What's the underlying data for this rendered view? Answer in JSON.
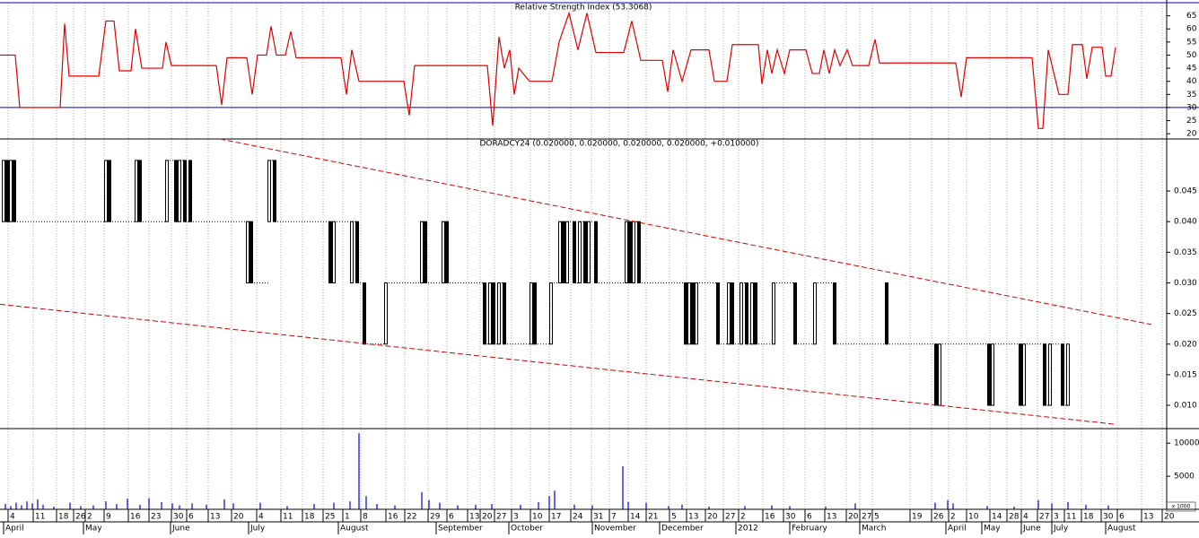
{
  "chart_data": [
    {
      "type": "line",
      "title": "Relative Strength Index (53.3068)",
      "color": "#e00000",
      "xlim": [
        0,
        325
      ],
      "ylim": [
        18,
        70
      ],
      "yticks": [
        20,
        25,
        30,
        35,
        40,
        45,
        50,
        55,
        60,
        65
      ],
      "ref_lines": [
        30,
        70
      ],
      "ref_color": "#0000cc",
      "x": [
        0,
        4.25,
        5.5,
        16.75,
        18,
        19.25,
        27.5,
        29.5,
        31.75,
        33.25,
        36.5,
        37.75,
        39.5,
        45.25,
        46.25,
        47.75,
        60.25,
        61.75,
        63.25,
        68.75,
        70.25,
        71.75,
        74.25,
        75.5,
        77,
        79.5,
        81,
        82.5,
        95,
        96.5,
        98,
        100,
        112.5,
        114,
        115.5,
        135.75,
        137.25,
        139,
        140.5,
        142,
        143.25,
        144.5,
        147.5,
        153.75,
        155.75,
        158.5,
        161,
        163.5,
        166,
        173.75,
        176,
        178.5,
        184.5,
        186,
        187.5,
        190,
        192.5,
        197.5,
        199,
        202.5,
        204,
        211.25,
        212.25,
        213.75,
        215,
        216.5,
        218.5,
        220,
        224.5,
        226.25,
        228.25,
        229.5,
        231,
        232.5,
        234,
        236,
        237.5,
        242,
        243.75,
        245,
        266.25,
        267.75,
        269.25,
        287.5,
        289.25,
        290.5,
        292,
        295,
        297.5,
        298.75,
        301.5,
        302.75,
        304.25,
        307,
        308,
        309.5,
        310.75
      ],
      "values": [
        50,
        50,
        30,
        30,
        62,
        42,
        42,
        63,
        63,
        44,
        44,
        60,
        45,
        45,
        55,
        46,
        46,
        31,
        49,
        49,
        35,
        50,
        50,
        61,
        50,
        50,
        59,
        49,
        49,
        35,
        52,
        40,
        40,
        27,
        46,
        46,
        23,
        57,
        45,
        52,
        35,
        45,
        40,
        40,
        55,
        66,
        52,
        66,
        51,
        51,
        63,
        48,
        48,
        36,
        52,
        40,
        52,
        52,
        40,
        40,
        54,
        54,
        39,
        52,
        43,
        52,
        43,
        52,
        52,
        43,
        43,
        52,
        43,
        52,
        46,
        52,
        46,
        46,
        56,
        47,
        47,
        34,
        49,
        49,
        22,
        22,
        52,
        35,
        35,
        54,
        54,
        41,
        53,
        53,
        42,
        42,
        53
      ]
    },
    {
      "type": "candlestick",
      "title": "DORADCY24 (0.020000, 0.020000, 0.020000, 0.020000, +0.010000)",
      "color": "#000000",
      "xlim": [
        0,
        325
      ],
      "ylim": [
        0.0062,
        0.0535
      ],
      "yticks": [
        {
          "value": 0.01,
          "label": "0.010"
        },
        0.015,
        {
          "value": 0.02,
          "label": "0.020"
        },
        0.025,
        {
          "value": 0.03,
          "label": "0.030"
        },
        0.035,
        {
          "value": 0.04,
          "label": "0.040"
        },
        0.045
      ],
      "x": [
        1,
        2,
        3,
        4,
        29.5,
        30.5,
        38,
        39,
        46.5,
        49,
        50,
        51.5,
        53,
        69,
        70,
        75,
        76.5,
        92,
        93,
        98,
        99.5,
        101.5,
        107.5,
        117.5,
        118.5,
        123.5,
        124.5,
        135,
        136.5,
        137.5,
        139,
        140.5,
        148,
        149,
        153.5,
        156,
        157,
        158,
        160,
        161.5,
        163,
        164,
        166,
        174.5,
        175.5,
        176.5,
        178,
        191,
        192,
        193,
        194,
        200,
        203,
        204,
        206.5,
        208,
        209.5,
        210.5,
        215.5,
        221.5,
        227,
        232.5,
        247,
        260.75,
        261.75,
        275.5,
        276.5,
        284.25,
        285.25,
        291,
        292.5,
        296,
        297.5
      ],
      "open": [
        0.04,
        0.05,
        0.04,
        0.05,
        0.04,
        0.05,
        0.04,
        0.05,
        0.04,
        0.05,
        0.04,
        0.05,
        0.05,
        0.03,
        0.04,
        0.04,
        0.05,
        0.04,
        0.03,
        0.03,
        0.04,
        0.03,
        0.02,
        0.03,
        0.04,
        0.03,
        0.04,
        0.03,
        0.02,
        0.03,
        0.02,
        0.03,
        0.02,
        0.03,
        0.02,
        0.03,
        0.04,
        0.03,
        0.04,
        0.03,
        0.04,
        0.03,
        0.04,
        0.03,
        0.04,
        0.03,
        0.04,
        0.03,
        0.02,
        0.03,
        0.02,
        0.03,
        0.02,
        0.03,
        0.02,
        0.03,
        0.02,
        0.03,
        0.02,
        0.03,
        0.02,
        0.03,
        0.03,
        0.02,
        0.01,
        0.02,
        0.01,
        0.02,
        0.01,
        0.02,
        0.01,
        0.02,
        0.01
      ],
      "close": [
        0.05,
        0.04,
        0.05,
        0.04,
        0.05,
        0.04,
        0.05,
        0.04,
        0.05,
        0.04,
        0.05,
        0.04,
        0.04,
        0.04,
        0.03,
        0.05,
        0.04,
        0.03,
        0.04,
        0.04,
        0.03,
        0.02,
        0.03,
        0.04,
        0.03,
        0.04,
        0.03,
        0.02,
        0.03,
        0.02,
        0.03,
        0.02,
        0.03,
        0.02,
        0.03,
        0.04,
        0.03,
        0.04,
        0.03,
        0.04,
        0.03,
        0.04,
        0.03,
        0.04,
        0.03,
        0.04,
        0.03,
        0.02,
        0.03,
        0.02,
        0.03,
        0.02,
        0.03,
        0.02,
        0.03,
        0.02,
        0.03,
        0.02,
        0.03,
        0.02,
        0.03,
        0.02,
        0.02,
        0.01,
        0.02,
        0.01,
        0.02,
        0.01,
        0.02,
        0.01,
        0.02,
        0.01,
        0.02
      ],
      "trendlines": [
        {
          "x": [
            61.25,
            320.75
          ],
          "y": [
            0.0535,
            0.0232
          ]
        },
        {
          "x": [
            0,
            310.75
          ],
          "y": [
            0.0265,
            0.0069
          ]
        }
      ],
      "trendline_color": "#d00000"
    },
    {
      "type": "bar",
      "color": "#0000cc",
      "unit_label": "x 1000",
      "xlim": [
        0,
        325
      ],
      "ylim": [
        0,
        12200
      ],
      "yticks": [
        5000,
        10000
      ],
      "x": [
        1.5,
        3,
        4.5,
        6,
        7.5,
        9,
        10.5,
        12,
        15,
        19.5,
        22.5,
        26,
        29.5,
        32.5,
        35.5,
        39,
        41.5,
        45,
        48,
        50,
        53.5,
        57.5,
        62.5,
        65,
        72.5,
        80,
        87.5,
        93,
        97.5,
        100,
        102,
        105,
        110,
        117.5,
        119.5,
        122.5,
        127.5,
        132.5,
        137,
        145,
        150,
        153,
        154.5,
        160,
        165,
        173.5,
        175,
        180,
        186.25,
        190,
        197.5,
        207.5,
        215,
        220,
        230,
        238.25,
        260.5,
        264,
        265.5,
        275,
        282.5,
        289.25,
        293,
        297.5,
        302.5,
        308.75
      ],
      "values": [
        800,
        500,
        1000,
        600,
        1200,
        900,
        1500,
        700,
        400,
        1000,
        500,
        600,
        1200,
        800,
        1600,
        700,
        1700,
        1100,
        900,
        600,
        900,
        700,
        1500,
        900,
        1000,
        500,
        800,
        1000,
        1200,
        11500,
        2000,
        800,
        600,
        2600,
        1400,
        1000,
        600,
        700,
        800,
        700,
        1100,
        2000,
        2800,
        700,
        600,
        6500,
        1100,
        1000,
        500,
        700,
        400,
        500,
        600,
        500,
        400,
        900,
        1000,
        1400,
        900,
        500,
        400,
        1400,
        900,
        1100,
        700,
        600
      ],
      "xticks": [
        {
          "value": 2.25,
          "label": "4"
        },
        {
          "value": 9.25,
          "label": "11"
        },
        {
          "value": 15.75,
          "label": "18"
        },
        {
          "value": 20.5,
          "label": "26"
        },
        {
          "value": 23.75,
          "label": "2"
        },
        {
          "value": 29,
          "label": "9"
        },
        {
          "value": 35.75,
          "label": "16"
        },
        {
          "value": 41.5,
          "label": "23"
        },
        {
          "value": 47.75,
          "label": "30"
        },
        {
          "value": 52,
          "label": "6"
        },
        {
          "value": 58,
          "label": "13"
        },
        {
          "value": 64.5,
          "label": "20"
        },
        {
          "value": 71.5,
          "label": "4"
        },
        {
          "value": 78.25,
          "label": "11"
        },
        {
          "value": 84.25,
          "label": "18"
        },
        {
          "value": 90,
          "label": "25"
        },
        {
          "value": 95.5,
          "label": "1"
        },
        {
          "value": 100.5,
          "label": "8"
        },
        {
          "value": 107.5,
          "label": "16"
        },
        {
          "value": 112.75,
          "label": "22"
        },
        {
          "value": 119.25,
          "label": "29"
        },
        {
          "value": 124.5,
          "label": "6"
        },
        {
          "value": 130.25,
          "label": "13"
        },
        {
          "value": 133.75,
          "label": "20"
        },
        {
          "value": 137.75,
          "label": "27"
        },
        {
          "value": 142.5,
          "label": "3"
        },
        {
          "value": 147.75,
          "label": "10"
        },
        {
          "value": 153,
          "label": "17"
        },
        {
          "value": 159,
          "label": "24"
        },
        {
          "value": 164.75,
          "label": "31"
        },
        {
          "value": 169.75,
          "label": "7"
        },
        {
          "value": 175,
          "label": "14"
        },
        {
          "value": 180,
          "label": "21"
        },
        {
          "value": 186.5,
          "label": "5"
        },
        {
          "value": 191.25,
          "label": "13"
        },
        {
          "value": 196.5,
          "label": "20"
        },
        {
          "value": 201.5,
          "label": "27"
        },
        {
          "value": 205.75,
          "label": "2"
        },
        {
          "value": 212.5,
          "label": "16"
        },
        {
          "value": 218.25,
          "label": "30"
        },
        {
          "value": 224.25,
          "label": "6"
        },
        {
          "value": 229.75,
          "label": "13"
        },
        {
          "value": 235.75,
          "label": "20"
        },
        {
          "value": 239.5,
          "label": "27"
        },
        {
          "value": 243,
          "label": "5"
        },
        {
          "value": 253.5,
          "label": "19"
        },
        {
          "value": 259.5,
          "label": "26"
        },
        {
          "value": 264.25,
          "label": "2"
        },
        {
          "value": 269.25,
          "label": "10"
        },
        {
          "value": 275.75,
          "label": "14"
        },
        {
          "value": 280.5,
          "label": "28"
        },
        {
          "value": 284.5,
          "label": "4"
        },
        {
          "value": 289,
          "label": "27"
        },
        {
          "value": 293,
          "label": "3"
        },
        {
          "value": 296.5,
          "label": "11"
        },
        {
          "value": 301.25,
          "label": "18"
        },
        {
          "value": 306.75,
          "label": "30"
        },
        {
          "value": 311.25,
          "label": "6"
        },
        {
          "value": 318,
          "label": "13"
        },
        {
          "value": 323.75,
          "label": "20"
        }
      ],
      "month_ticks": [
        {
          "value": 1,
          "label": "April"
        },
        {
          "value": 23.25,
          "label": "May"
        },
        {
          "value": 47.5,
          "label": "June"
        },
        {
          "value": 69.25,
          "label": "July"
        },
        {
          "value": 94.25,
          "label": "August"
        },
        {
          "value": 121.5,
          "label": "September"
        },
        {
          "value": 141.75,
          "label": "October"
        },
        {
          "value": 165,
          "label": "November"
        },
        {
          "value": 183.75,
          "label": "December"
        },
        {
          "value": 205,
          "label": "2012"
        },
        {
          "value": 220,
          "label": "February"
        },
        {
          "value": 239.5,
          "label": "March"
        },
        {
          "value": 263.5,
          "label": "April"
        },
        {
          "value": 273.5,
          "label": "May"
        },
        {
          "value": 284.5,
          "label": "June"
        },
        {
          "value": 293,
          "label": "July"
        },
        {
          "value": 308,
          "label": "August"
        }
      ]
    }
  ]
}
